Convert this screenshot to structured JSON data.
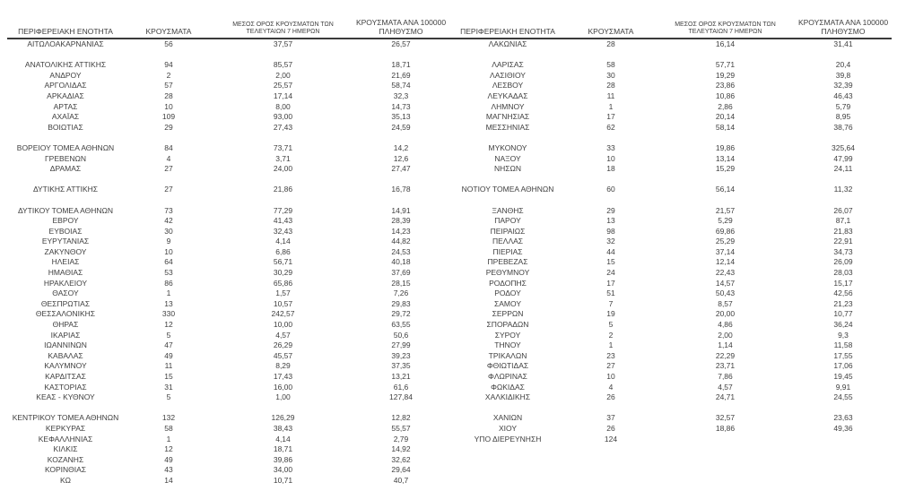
{
  "colors": {
    "text": "#3f3f3f",
    "header_border": "#3a3a3a",
    "bottom_border": "#4f4f4f",
    "background": "#ffffff"
  },
  "table": {
    "headers": {
      "region": "ΠΕΡΙΦΕΡΕΙΑΚΗ ΕΝΟΤΗΤΑ",
      "cases": "ΚΡΟΥΣΜΑΤΑ",
      "avg7_line1": "ΜΕΣΟΣ ΟΡΟΣ ΚΡΟΥΣΜΑΤΩΝ ΤΩΝ",
      "avg7_line2": "ΤΕΛΕΥΤΑΙΩΝ 7 ΗΜΕΡΩΝ",
      "per100k_line1": "ΚΡΟΥΣΜΑΤΑ ΑΝΑ 100000",
      "per100k_line2": "ΠΛΗΘΥΣΜΟ"
    },
    "left_rows": [
      {
        "name": "ΑΙΤΩΛΟΑΚΑΡΝΑΝΙΑΣ",
        "cases": "56",
        "avg": "37,57",
        "per100k": "26,57"
      },
      null,
      {
        "name": "ΑΝΑΤΟΛΙΚΗΣ ΑΤΤΙΚΗΣ",
        "cases": "94",
        "avg": "85,57",
        "per100k": "18,71"
      },
      {
        "name": "ΑΝΔΡΟΥ",
        "cases": "2",
        "avg": "2,00",
        "per100k": "21,69"
      },
      {
        "name": "ΑΡΓΟΛΙΔΑΣ",
        "cases": "57",
        "avg": "25,57",
        "per100k": "58,74"
      },
      {
        "name": "ΑΡΚΑΔΙΑΣ",
        "cases": "28",
        "avg": "17,14",
        "per100k": "32,3"
      },
      {
        "name": "ΑΡΤΑΣ",
        "cases": "10",
        "avg": "8,00",
        "per100k": "14,73"
      },
      {
        "name": "ΑΧΑΪΑΣ",
        "cases": "109",
        "avg": "93,00",
        "per100k": "35,13"
      },
      {
        "name": "ΒΟΙΩΤΙΑΣ",
        "cases": "29",
        "avg": "27,43",
        "per100k": "24,59"
      },
      null,
      {
        "name": "ΒΟΡΕΙΟΥ ΤΟΜΕΑ ΑΘΗΝΩΝ",
        "cases": "84",
        "avg": "73,71",
        "per100k": "14,2"
      },
      {
        "name": "ΓΡΕΒΕΝΩΝ",
        "cases": "4",
        "avg": "3,71",
        "per100k": "12,6"
      },
      {
        "name": "ΔΡΑΜΑΣ",
        "cases": "27",
        "avg": "24,00",
        "per100k": "27,47"
      },
      null,
      {
        "name": "ΔΥΤΙΚΗΣ ΑΤΤΙΚΗΣ",
        "cases": "27",
        "avg": "21,86",
        "per100k": "16,78"
      },
      null,
      {
        "name": "ΔΥΤΙΚΟΥ ΤΟΜΕΑ ΑΘΗΝΩΝ",
        "cases": "73",
        "avg": "77,29",
        "per100k": "14,91"
      },
      {
        "name": "ΕΒΡΟΥ",
        "cases": "42",
        "avg": "41,43",
        "per100k": "28,39"
      },
      {
        "name": "ΕΥΒΟΙΑΣ",
        "cases": "30",
        "avg": "32,43",
        "per100k": "14,23"
      },
      {
        "name": "ΕΥΡΥΤΑΝΙΑΣ",
        "cases": "9",
        "avg": "4,14",
        "per100k": "44,82"
      },
      {
        "name": "ΖΑΚΥΝΘΟΥ",
        "cases": "10",
        "avg": "6,86",
        "per100k": "24,53"
      },
      {
        "name": "ΗΛΕΙΑΣ",
        "cases": "64",
        "avg": "56,71",
        "per100k": "40,18"
      },
      {
        "name": "ΗΜΑΘΙΑΣ",
        "cases": "53",
        "avg": "30,29",
        "per100k": "37,69"
      },
      {
        "name": "ΗΡΑΚΛΕΙΟΥ",
        "cases": "86",
        "avg": "65,86",
        "per100k": "28,15"
      },
      {
        "name": "ΘΑΣΟΥ",
        "cases": "1",
        "avg": "1,57",
        "per100k": "7,26"
      },
      {
        "name": "ΘΕΣΠΡΩΤΙΑΣ",
        "cases": "13",
        "avg": "10,57",
        "per100k": "29,83"
      },
      {
        "name": "ΘΕΣΣΑΛΟΝΙΚΗΣ",
        "cases": "330",
        "avg": "242,57",
        "per100k": "29,72"
      },
      {
        "name": "ΘΗΡΑΣ",
        "cases": "12",
        "avg": "10,00",
        "per100k": "63,55"
      },
      {
        "name": "ΙΚΑΡΙΑΣ",
        "cases": "5",
        "avg": "4,57",
        "per100k": "50,6"
      },
      {
        "name": "ΙΩΑΝΝΙΝΩΝ",
        "cases": "47",
        "avg": "26,29",
        "per100k": "27,99"
      },
      {
        "name": "ΚΑΒΑΛΑΣ",
        "cases": "49",
        "avg": "45,57",
        "per100k": "39,23"
      },
      {
        "name": "ΚΑΛΥΜΝΟΥ",
        "cases": "11",
        "avg": "8,29",
        "per100k": "37,35"
      },
      {
        "name": "ΚΑΡΔΙΤΣΑΣ",
        "cases": "15",
        "avg": "17,43",
        "per100k": "13,21"
      },
      {
        "name": "ΚΑΣΤΟΡΙΑΣ",
        "cases": "31",
        "avg": "16,00",
        "per100k": "61,6"
      },
      {
        "name": "ΚΕΑΣ - ΚΥΘΝΟΥ",
        "cases": "5",
        "avg": "1,00",
        "per100k": "127,84"
      },
      null,
      {
        "name": "ΚΕΝΤΡΙΚΟΥ ΤΟΜΕΑ ΑΘΗΝΩΝ",
        "cases": "132",
        "avg": "126,29",
        "per100k": "12,82"
      },
      {
        "name": "ΚΕΡΚΥΡΑΣ",
        "cases": "58",
        "avg": "38,43",
        "per100k": "55,57"
      },
      {
        "name": "ΚΕΦΑΛΛΗΝΙΑΣ",
        "cases": "1",
        "avg": "4,14",
        "per100k": "2,79"
      },
      {
        "name": "ΚΙΛΚΙΣ",
        "cases": "12",
        "avg": "18,71",
        "per100k": "14,92"
      },
      {
        "name": "ΚΟΖΑΝΗΣ",
        "cases": "49",
        "avg": "39,86",
        "per100k": "32,62"
      },
      {
        "name": "ΚΟΡΙΝΘΙΑΣ",
        "cases": "43",
        "avg": "34,00",
        "per100k": "29,64"
      },
      {
        "name": "ΚΩ",
        "cases": "14",
        "avg": "10,71",
        "per100k": "40,7"
      }
    ],
    "right_rows": [
      {
        "name": "ΛΑΚΩΝΙΑΣ",
        "cases": "28",
        "avg": "16,14",
        "per100k": "31,41"
      },
      null,
      {
        "name": "ΛΑΡΙΣΑΣ",
        "cases": "58",
        "avg": "57,71",
        "per100k": "20,4"
      },
      {
        "name": "ΛΑΣΙΘΙΟΥ",
        "cases": "30",
        "avg": "19,29",
        "per100k": "39,8"
      },
      {
        "name": "ΛΕΣΒΟΥ",
        "cases": "28",
        "avg": "23,86",
        "per100k": "32,39"
      },
      {
        "name": "ΛΕΥΚΑΔΑΣ",
        "cases": "11",
        "avg": "10,86",
        "per100k": "46,43"
      },
      {
        "name": "ΛΗΜΝΟΥ",
        "cases": "1",
        "avg": "2,86",
        "per100k": "5,79"
      },
      {
        "name": "ΜΑΓΝΗΣΙΑΣ",
        "cases": "17",
        "avg": "20,14",
        "per100k": "8,95"
      },
      {
        "name": "ΜΕΣΣΗΝΙΑΣ",
        "cases": "62",
        "avg": "58,14",
        "per100k": "38,76"
      },
      null,
      {
        "name": "ΜΥΚΟΝΟΥ",
        "cases": "33",
        "avg": "19,86",
        "per100k": "325,64"
      },
      {
        "name": "ΝΑΞΟΥ",
        "cases": "10",
        "avg": "13,14",
        "per100k": "47,99"
      },
      {
        "name": "ΝΗΣΩΝ",
        "cases": "18",
        "avg": "15,29",
        "per100k": "24,11"
      },
      null,
      {
        "name": "ΝΟΤΙΟΥ ΤΟΜΕΑ ΑΘΗΝΩΝ",
        "cases": "60",
        "avg": "56,14",
        "per100k": "11,32"
      },
      null,
      {
        "name": "ΞΑΝΘΗΣ",
        "cases": "29",
        "avg": "21,57",
        "per100k": "26,07"
      },
      {
        "name": "ΠΑΡΟΥ",
        "cases": "13",
        "avg": "5,29",
        "per100k": "87,1"
      },
      {
        "name": "ΠΕΙΡΑΙΩΣ",
        "cases": "98",
        "avg": "69,86",
        "per100k": "21,83"
      },
      {
        "name": "ΠΕΛΛΑΣ",
        "cases": "32",
        "avg": "25,29",
        "per100k": "22,91"
      },
      {
        "name": "ΠΙΕΡΙΑΣ",
        "cases": "44",
        "avg": "37,14",
        "per100k": "34,73"
      },
      {
        "name": "ΠΡΕΒΕΖΑΣ",
        "cases": "15",
        "avg": "12,14",
        "per100k": "26,09"
      },
      {
        "name": "ΡΕΘΥΜΝΟΥ",
        "cases": "24",
        "avg": "22,43",
        "per100k": "28,03"
      },
      {
        "name": "ΡΟΔΟΠΗΣ",
        "cases": "17",
        "avg": "14,57",
        "per100k": "15,17"
      },
      {
        "name": "ΡΟΔΟΥ",
        "cases": "51",
        "avg": "50,43",
        "per100k": "42,56"
      },
      {
        "name": "ΣΑΜΟΥ",
        "cases": "7",
        "avg": "8,57",
        "per100k": "21,23"
      },
      {
        "name": "ΣΕΡΡΩΝ",
        "cases": "19",
        "avg": "20,00",
        "per100k": "10,77"
      },
      {
        "name": "ΣΠΟΡΑΔΩΝ",
        "cases": "5",
        "avg": "4,86",
        "per100k": "36,24"
      },
      {
        "name": "ΣΥΡΟΥ",
        "cases": "2",
        "avg": "2,00",
        "per100k": "9,3"
      },
      {
        "name": "ΤΗΝΟΥ",
        "cases": "1",
        "avg": "1,14",
        "per100k": "11,58"
      },
      {
        "name": "ΤΡΙΚΑΛΩΝ",
        "cases": "23",
        "avg": "22,29",
        "per100k": "17,55"
      },
      {
        "name": "ΦΘΙΩΤΙΔΑΣ",
        "cases": "27",
        "avg": "23,71",
        "per100k": "17,06"
      },
      {
        "name": "ΦΛΩΡΙΝΑΣ",
        "cases": "10",
        "avg": "7,86",
        "per100k": "19,45"
      },
      {
        "name": "ΦΩΚΙΔΑΣ",
        "cases": "4",
        "avg": "4,57",
        "per100k": "9,91"
      },
      {
        "name": "ΧΑΛΚΙΔΙΚΗΣ",
        "cases": "26",
        "avg": "24,71",
        "per100k": "24,55"
      },
      null,
      {
        "name": "ΧΑΝΙΩΝ",
        "cases": "37",
        "avg": "32,57",
        "per100k": "23,63"
      },
      {
        "name": "ΧΙΟΥ",
        "cases": "26",
        "avg": "18,86",
        "per100k": "49,36"
      },
      {
        "name": "ΥΠΟ ΔΙΕΡΕΥΝΗΣΗ",
        "cases": "124",
        "avg": "",
        "per100k": ""
      },
      null,
      null,
      null,
      null
    ]
  }
}
